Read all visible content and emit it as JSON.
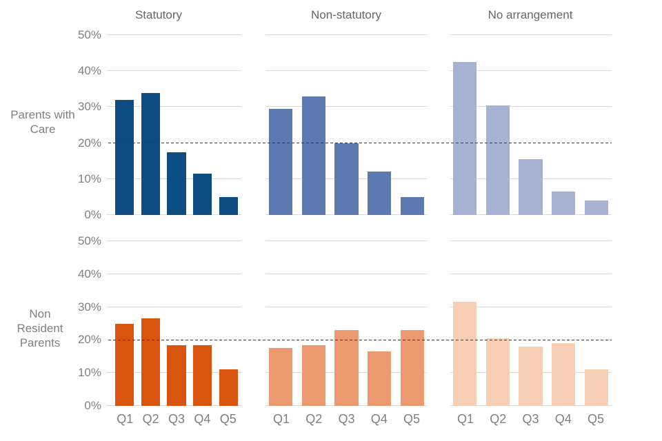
{
  "columns": [
    "Statutory",
    "Non-statutory",
    "No arrangement"
  ],
  "row_labels": [
    "Parents with Care",
    "Non Resident Parents"
  ],
  "axis": {
    "tick_labels": [
      "50%",
      "40%",
      "30%",
      "20%",
      "10%",
      "0%"
    ],
    "max": 50,
    "min": 0,
    "reference_line_value": 20
  },
  "x_labels": [
    "Q1",
    "Q2",
    "Q3",
    "Q4",
    "Q5"
  ],
  "chart_data": {
    "type": "bar",
    "unit": "%",
    "ylim": [
      0,
      50
    ],
    "categories": [
      "Q1",
      "Q2",
      "Q3",
      "Q4",
      "Q5"
    ],
    "reference_line": 20,
    "grid": true,
    "panels": [
      {
        "row": "Parents with Care",
        "column": "Statutory",
        "color": "#0e4d82",
        "values": [
          32,
          34,
          17.5,
          11.5,
          5
        ]
      },
      {
        "row": "Parents with Care",
        "column": "Non-statutory",
        "color": "#5c79b2",
        "values": [
          29.5,
          33,
          20,
          12,
          5
        ]
      },
      {
        "row": "Parents with Care",
        "column": "No arrangement",
        "color": "#a7b1d2",
        "values": [
          42.5,
          30.5,
          15.5,
          6.5,
          4
        ]
      },
      {
        "row": "Non Resident Parents",
        "column": "Statutory",
        "color": "#d8540f",
        "values": [
          25,
          26.5,
          18.5,
          18.5,
          11
        ]
      },
      {
        "row": "Non Resident Parents",
        "column": "Non-statutory",
        "color": "#eb9a6f",
        "values": [
          17.5,
          18.5,
          23,
          16.5,
          23
        ]
      },
      {
        "row": "Non Resident Parents",
        "column": "No arrangement",
        "color": "#f7cfb4",
        "values": [
          31.5,
          20.5,
          18,
          19,
          11
        ]
      }
    ]
  },
  "colors": {
    "gridline": "#d9d9d9",
    "reference_line": "#3a3a3a",
    "label_text": "#7f7f7f",
    "title_text": "#666666",
    "background": "#ffffff"
  }
}
